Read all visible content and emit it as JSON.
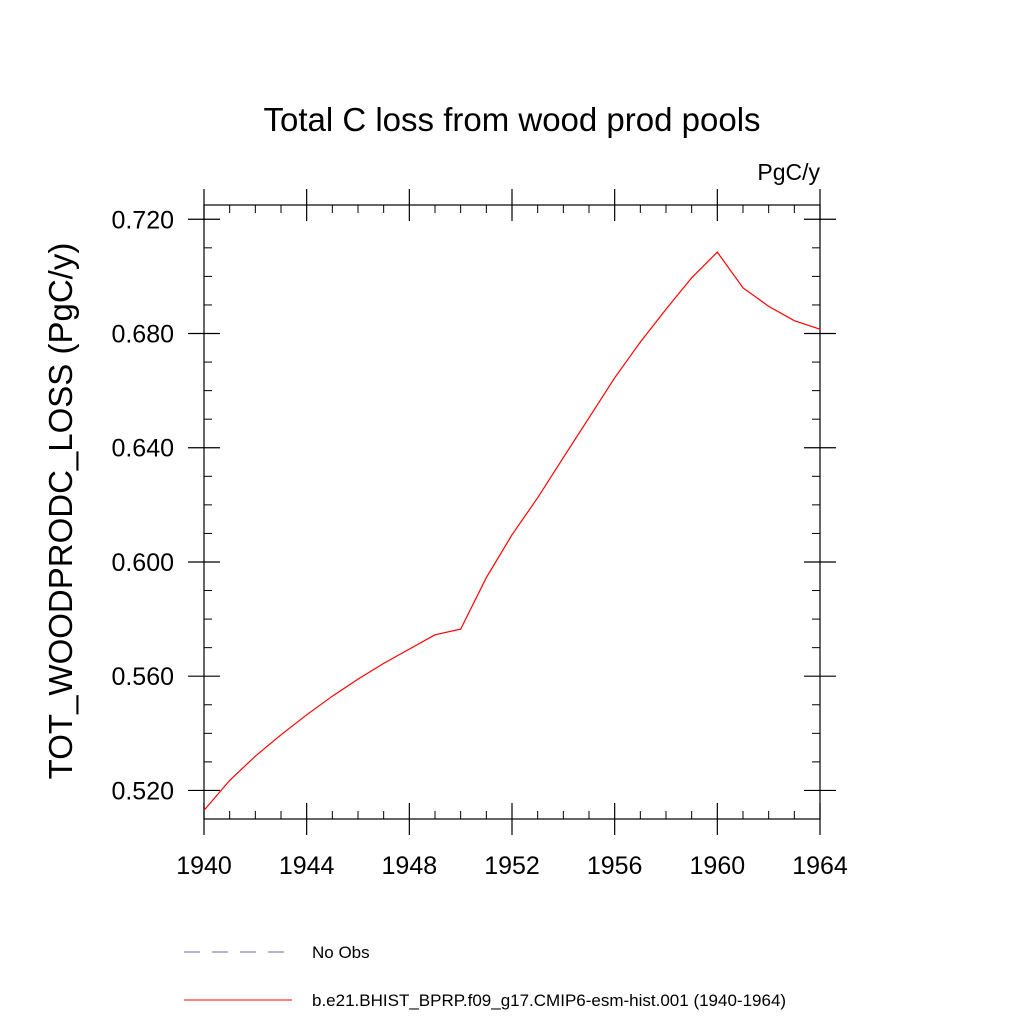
{
  "chart_data": {
    "type": "line",
    "title": "Total C loss from wood prod pools",
    "units": "PgC/y",
    "ylabel": "TOT_WOODPRODC_LOSS  (PgC/y)",
    "xlabel": "",
    "xlim": [
      1940,
      1964
    ],
    "ylim": [
      0.51,
      0.725
    ],
    "x_ticks": [
      1940,
      1944,
      1948,
      1952,
      1956,
      1960,
      1964
    ],
    "x_tick_labels": [
      "1940",
      "1944",
      "1948",
      "1952",
      "1956",
      "1960",
      "1964"
    ],
    "y_ticks": [
      0.52,
      0.56,
      0.6,
      0.64,
      0.68,
      0.72
    ],
    "y_tick_labels": [
      "0.520",
      "0.560",
      "0.600",
      "0.640",
      "0.680",
      "0.720"
    ],
    "x_minor_step": 1,
    "y_minor_step": 0.01,
    "grid": false,
    "legend_position": "bottom",
    "series": [
      {
        "name": "No Obs",
        "color": "#6b6bb0",
        "dash": "dashed",
        "x": [],
        "y": []
      },
      {
        "name": "b.e21.BHIST_BPRP.f09_g17.CMIP6-esm-hist.001 (1940-1964)",
        "color": "#ff0000",
        "dash": "solid",
        "x": [
          1940,
          1941,
          1942,
          1943,
          1944,
          1945,
          1946,
          1947,
          1948,
          1949,
          1950,
          1951,
          1952,
          1953,
          1954,
          1955,
          1956,
          1957,
          1958,
          1959,
          1960,
          1961,
          1962,
          1963,
          1964
        ],
        "y": [
          0.513,
          0.5235,
          0.532,
          0.5395,
          0.5465,
          0.553,
          0.559,
          0.5645,
          0.5695,
          0.5745,
          0.5765,
          0.5945,
          0.6095,
          0.6225,
          0.6365,
          0.6505,
          0.6645,
          0.677,
          0.6885,
          0.6995,
          0.7085,
          0.696,
          0.6895,
          0.6845,
          0.6815
        ]
      }
    ]
  }
}
